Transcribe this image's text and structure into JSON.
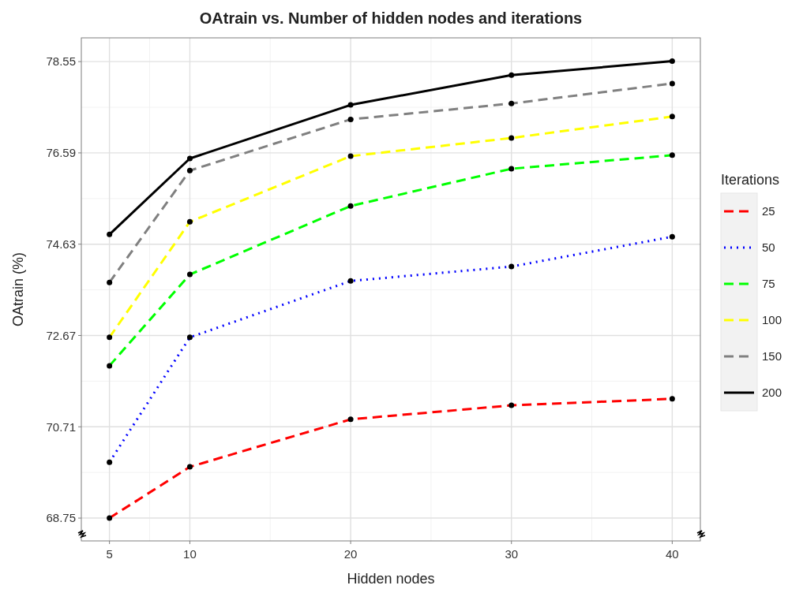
{
  "chart_data": {
    "type": "line",
    "title": "OAtrain vs. Number of hidden nodes and iterations",
    "xlabel": "Hidden nodes",
    "ylabel": "OAtrain (%)",
    "legend_title": "Iterations",
    "x": [
      5,
      10,
      20,
      30,
      40
    ],
    "xlim": [
      3.25,
      41.75
    ],
    "xticks": [
      5,
      10,
      20,
      30,
      40
    ],
    "ylim": [
      68.26,
      79.06
    ],
    "yticks": [
      68.75,
      70.71,
      72.67,
      74.63,
      76.59,
      78.55
    ],
    "grid": true,
    "legend": "right",
    "marker": "circle",
    "series": [
      {
        "name": "25",
        "color": "#ff0000",
        "line_style": "dashed",
        "values": [
          68.75,
          69.85,
          70.87,
          71.17,
          71.31
        ]
      },
      {
        "name": "50",
        "color": "#0000ff",
        "line_style": "dotted",
        "values": [
          69.95,
          72.63,
          73.84,
          74.15,
          74.79
        ]
      },
      {
        "name": "75",
        "color": "#00ff00",
        "line_style": "dashed",
        "values": [
          72.02,
          73.98,
          75.45,
          76.25,
          76.54
        ]
      },
      {
        "name": "100",
        "color": "#ffff00",
        "line_style": "dashed",
        "values": [
          72.63,
          75.11,
          76.52,
          76.91,
          77.37
        ]
      },
      {
        "name": "150",
        "color": "#808080",
        "line_style": "dashed",
        "values": [
          73.81,
          76.21,
          77.31,
          77.65,
          78.08
        ]
      },
      {
        "name": "200",
        "color": "#000000",
        "line_style": "solid",
        "values": [
          74.84,
          76.47,
          77.62,
          78.26,
          78.56
        ]
      }
    ]
  }
}
